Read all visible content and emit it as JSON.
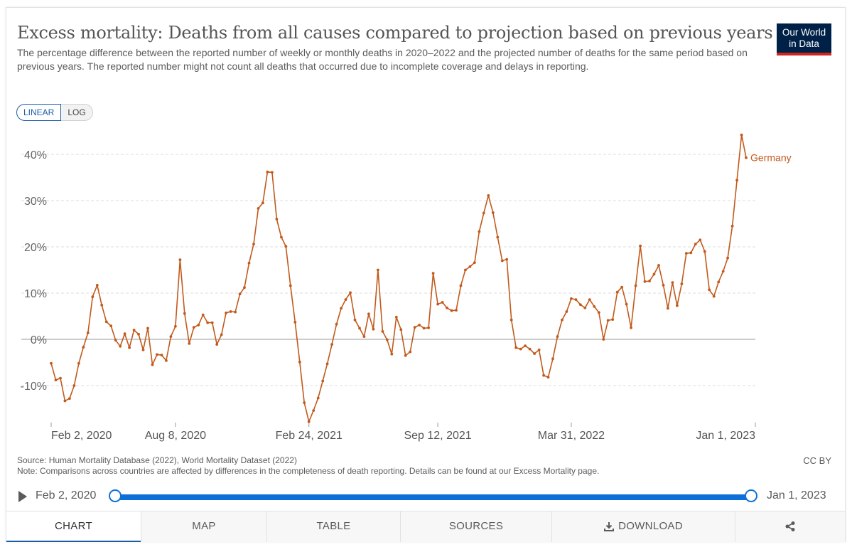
{
  "header": {
    "title": "Excess mortality: Deaths from all causes compared to projection based on previous years",
    "subtitle": "The percentage difference between the reported number of weekly or monthly deaths in 2020–2022 and the projected number of deaths for the same period based on previous years. The reported number might not count all deaths that occurred due to incomplete coverage and delays in reporting.",
    "logo_line1": "Our World",
    "logo_line2": "in Data"
  },
  "scale_toggle": {
    "linear_label": "LINEAR",
    "log_label": "LOG"
  },
  "chart_data": {
    "type": "line",
    "title": "Excess mortality: Deaths from all causes compared to projection based on previous years",
    "xlabel": "",
    "ylabel": "",
    "ylim": [
      -18,
      45
    ],
    "y_ticks": [
      -10,
      0,
      10,
      20,
      30,
      40
    ],
    "y_tick_labels": [
      "-10%",
      "0%",
      "10%",
      "20%",
      "30%",
      "40%"
    ],
    "x_tick_labels": [
      "Feb 2, 2020",
      "Aug 8, 2020",
      "Feb 24, 2021",
      "Sep 12, 2021",
      "Mar 31, 2022",
      "Jan 1, 2023"
    ],
    "x_tick_weeks": [
      0,
      27,
      56,
      84,
      113,
      153
    ],
    "x_range_weeks": [
      0,
      153
    ],
    "grid": true,
    "series": [
      {
        "name": "Germany",
        "color": "#c15a1c",
        "x_start_week": 0,
        "values": [
          -5.2,
          -8.8,
          -8.4,
          -13.3,
          -12.8,
          -10,
          -5.2,
          -1.7,
          1.4,
          9.2,
          11.7,
          7.4,
          3.8,
          2.9,
          -0.2,
          -1.5,
          1.2,
          -1.8,
          2,
          1.1,
          -2.3,
          2.4,
          -5.5,
          -3.3,
          -3.4,
          -4.6,
          0.6,
          2.8,
          17.2,
          5.6,
          -0.9,
          2.6,
          3.1,
          5.3,
          3.6,
          3.6,
          -1.1,
          1,
          5.7,
          6,
          5.9,
          9.8,
          11.2,
          16.5,
          20.6,
          28.3,
          29.5,
          36.2,
          36.1,
          26,
          22.1,
          20.1,
          11.6,
          3.7,
          -4.9,
          -13.7,
          -17.8,
          -15.4,
          -12.7,
          -9,
          -5.3,
          -1.1,
          3.3,
          6.7,
          8.6,
          10.1,
          4.2,
          2.4,
          0.6,
          5.5,
          2.2,
          15,
          1.7,
          -0.1,
          -3.2,
          4.8,
          2.1,
          -3.5,
          -2.7,
          2.6,
          3.1,
          2.4,
          2.5,
          14.3,
          7.6,
          8,
          6.8,
          6.2,
          6.3,
          11.6,
          15,
          15.7,
          16.6,
          23.3,
          27.3,
          31.1,
          27.4,
          22.1,
          17,
          17.3,
          4.2,
          -1.8,
          -2.1,
          -1.4,
          -2.1,
          -3.1,
          -2.3,
          -7.8,
          -8.2,
          -4.2,
          0.6,
          4.2,
          6,
          8.8,
          8.6,
          7.5,
          6.8,
          8.6,
          7.1,
          5.8,
          0,
          4.1,
          4.3,
          10.2,
          11.3,
          7.6,
          2.5,
          11.6,
          20.2,
          12.5,
          12.6,
          14.1,
          16,
          11.7,
          6.7,
          12.3,
          7.3,
          12,
          18.6,
          18.7,
          20.6,
          21.5,
          19,
          10.7,
          9.3,
          12.4,
          14.7,
          17.6,
          24.5,
          34.4,
          44.2,
          39.3
        ]
      }
    ]
  },
  "footer": {
    "source": "Source: Human Mortality Database (2022), World Mortality Dataset (2022)",
    "note": "Note: Comparisons across countries are affected by differences in the completeness of death reporting. Details can be found at our Excess Mortality page.",
    "license": "CC BY"
  },
  "timeline": {
    "start_label": "Feb 2, 2020",
    "end_label": "Jan 1, 2023"
  },
  "tabs": [
    "CHART",
    "MAP",
    "TABLE",
    "SOURCES",
    "DOWNLOAD",
    ""
  ],
  "colors": {
    "series": "#c15a1c",
    "accent": "#1d5fa7",
    "timeline": "#0e6fd8",
    "logo_bg": "#002147",
    "logo_bar": "#ce261e"
  }
}
